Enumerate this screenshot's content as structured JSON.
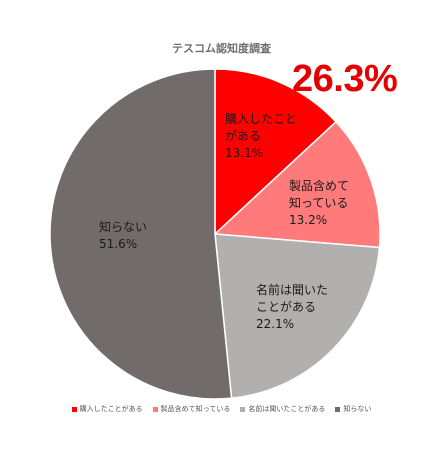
{
  "chart_data": {
    "type": "pie",
    "title": "テスコム認知度調査",
    "highlight": "26.3%",
    "slices": [
      {
        "name": "購入したことがある",
        "label_lines": [
          "購入したこと",
          "がある",
          "13.1%"
        ],
        "value": 13.1,
        "color": "#ff0000"
      },
      {
        "name": "製品含めて知っている",
        "label_lines": [
          "製品含めて",
          "知っている",
          "13.2%"
        ],
        "value": 13.2,
        "color": "#ff7b7b"
      },
      {
        "name": "名前は聞いたことがある",
        "label_lines": [
          "名前は聞いた",
          "ことがある",
          "22.1%"
        ],
        "value": 22.1,
        "color": "#b2b0af"
      },
      {
        "name": "知らない",
        "label_lines": [
          "知らない",
          "51.6%"
        ],
        "value": 51.6,
        "color": "#716b6b"
      }
    ],
    "legend_position": "bottom"
  }
}
